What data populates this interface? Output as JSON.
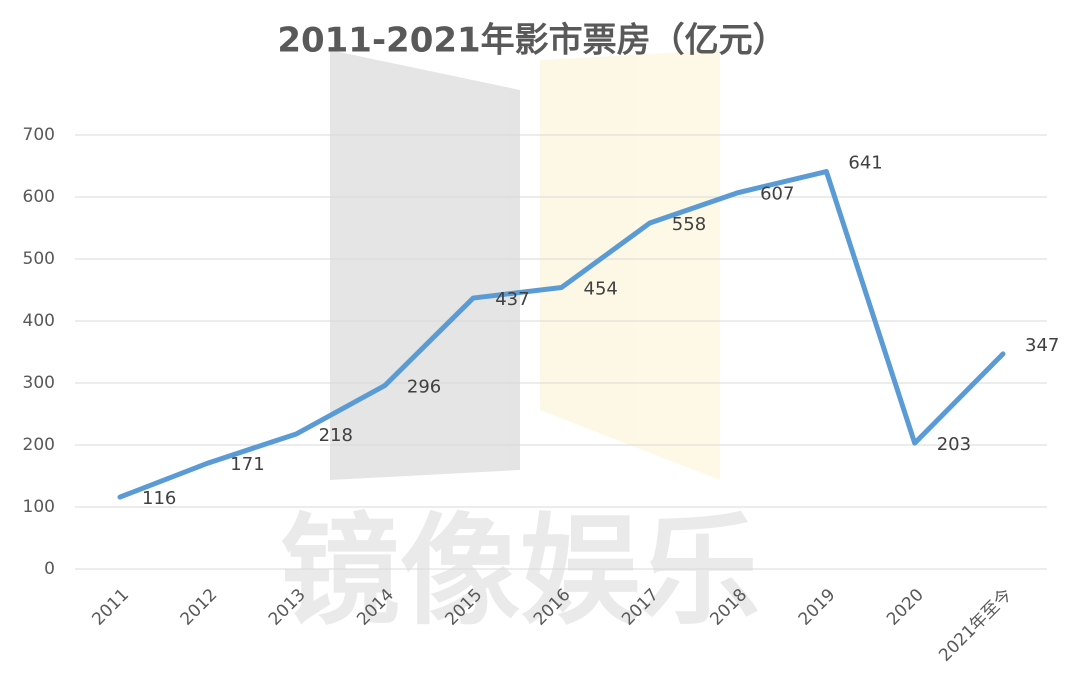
{
  "chart_data": {
    "type": "line",
    "title": "2011-2021年影市票房（亿元）",
    "watermark": "镜像娱乐",
    "categories": [
      "2011",
      "2012",
      "2013",
      "2014",
      "2015",
      "2016",
      "2017",
      "2018",
      "2019",
      "2020",
      "2021年至今"
    ],
    "values": [
      116,
      171,
      218,
      296,
      437,
      454,
      558,
      607,
      641,
      203,
      347
    ],
    "color": "#5b9bd5",
    "ylim": [
      0,
      700
    ],
    "yticks": [
      0,
      100,
      200,
      300,
      400,
      500,
      600,
      700
    ],
    "grid": true
  }
}
